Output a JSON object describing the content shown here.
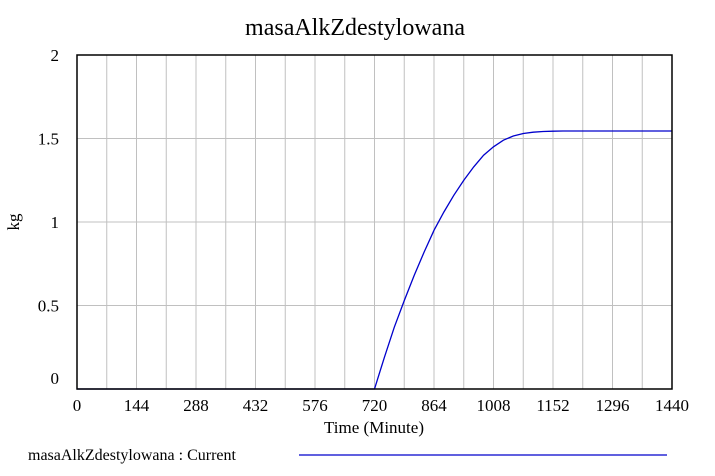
{
  "chart_data": {
    "type": "line",
    "title": "masaAlkZdestylowana",
    "xlabel": "Time (Minute)",
    "ylabel": "kg",
    "xlim": [
      0,
      1440
    ],
    "ylim": [
      0,
      2
    ],
    "x_ticks": [
      0,
      144,
      288,
      432,
      576,
      720,
      864,
      1008,
      1152,
      1296,
      1440
    ],
    "y_ticks": [
      0,
      0.5,
      1,
      1.5,
      2
    ],
    "y_tick_labels": [
      "0",
      "0.5",
      "1",
      "1.5",
      "2"
    ],
    "x_gridlines": [
      0,
      72,
      144,
      216,
      288,
      360,
      432,
      504,
      576,
      648,
      720,
      792,
      864,
      936,
      1008,
      1080,
      1152,
      1224,
      1296,
      1368,
      1440
    ],
    "grid": true,
    "legend_position": "bottom",
    "series": [
      {
        "name": "masaAlkZdestylowana : Current",
        "color": "#0000cc",
        "x": [
          0,
          720,
          744,
          768,
          792,
          816,
          840,
          864,
          888,
          912,
          936,
          960,
          984,
          1008,
          1032,
          1056,
          1080,
          1104,
          1128,
          1152,
          1176,
          1200,
          1296,
          1440
        ],
        "y": [
          0,
          0,
          0.19,
          0.37,
          0.53,
          0.68,
          0.82,
          0.95,
          1.06,
          1.16,
          1.25,
          1.33,
          1.4,
          1.45,
          1.49,
          1.515,
          1.53,
          1.538,
          1.542,
          1.544,
          1.545,
          1.545,
          1.545,
          1.545
        ]
      }
    ]
  }
}
